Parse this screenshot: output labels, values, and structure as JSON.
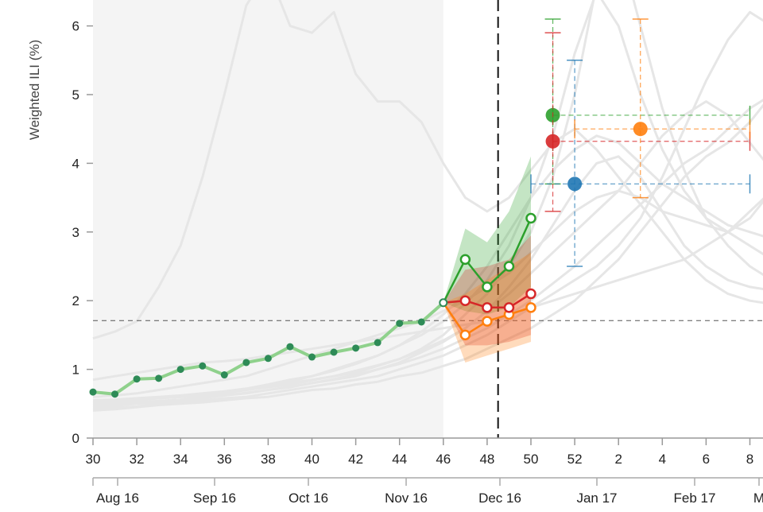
{
  "chart_data": {
    "type": "line",
    "ylabel": "Weighted ILI (%)",
    "ylim": [
      0,
      6.4
    ],
    "yticks": [
      0,
      1,
      2,
      3,
      4,
      5,
      6
    ],
    "x_ticks": [
      "30",
      "32",
      "34",
      "36",
      "38",
      "40",
      "42",
      "44",
      "46",
      "48",
      "50",
      "52",
      "2",
      "4",
      "6",
      "8"
    ],
    "date_labels": [
      "Aug 16",
      "Sep 16",
      "Oct 16",
      "Nov 16",
      "Dec 16",
      "Jan 17",
      "Feb 17",
      "M"
    ],
    "baseline": 1.71,
    "history_weeks": [
      "30",
      "46"
    ],
    "current_week": "48.5",
    "observed": {
      "weeks": [
        "30",
        "31",
        "32",
        "33",
        "34",
        "35",
        "36",
        "37",
        "38",
        "39",
        "40",
        "41",
        "42",
        "43",
        "44",
        "45",
        "46"
      ],
      "values": [
        0.67,
        0.64,
        0.86,
        0.87,
        1.0,
        1.05,
        0.92,
        1.1,
        1.16,
        1.33,
        1.18,
        1.25,
        1.31,
        1.39,
        1.67,
        1.69,
        1.97
      ]
    },
    "forecasts": [
      {
        "color": "#2ca02c",
        "weeks": [
          "46",
          "47",
          "48",
          "49",
          "50"
        ],
        "values": [
          1.97,
          2.6,
          2.2,
          2.5,
          3.2
        ],
        "lower": [
          1.97,
          1.85,
          1.8,
          1.9,
          2.2
        ],
        "upper": [
          1.97,
          3.05,
          2.85,
          3.3,
          4.1
        ]
      },
      {
        "color": "#d62728",
        "weeks": [
          "46",
          "47",
          "48",
          "49",
          "50"
        ],
        "values": [
          1.97,
          2.0,
          1.9,
          1.9,
          2.1
        ],
        "lower": [
          1.97,
          1.35,
          1.35,
          1.4,
          1.5
        ],
        "upper": [
          1.97,
          2.45,
          2.5,
          2.6,
          2.95
        ]
      },
      {
        "color": "#ff7f0e",
        "weeks": [
          "46",
          "47",
          "48",
          "49",
          "50"
        ],
        "values": [
          1.97,
          1.5,
          1.7,
          1.8,
          1.9
        ],
        "lower": [
          1.97,
          1.1,
          1.2,
          1.3,
          1.4
        ],
        "upper": [
          1.97,
          2.1,
          2.3,
          2.5,
          2.7
        ]
      }
    ],
    "peak_estimates": [
      {
        "color": "#2ca02c",
        "peak_week": "51",
        "peak_value": 4.7,
        "peak_low": 3.7,
        "peak_high": 6.1,
        "week_low": "51",
        "week_high": "8"
      },
      {
        "color": "#d62728",
        "peak_week": "51",
        "peak_value": 4.32,
        "peak_low": 3.3,
        "peak_high": 5.9,
        "week_low": "51",
        "week_high": "8"
      },
      {
        "color": "#1f77b4",
        "peak_week": "52",
        "peak_value": 3.7,
        "peak_low": 2.5,
        "peak_high": 5.5,
        "week_low": "50",
        "week_high": "8"
      },
      {
        "color": "#ff7f0e",
        "peak_week": "3",
        "peak_value": 4.5,
        "peak_low": 3.5,
        "peak_high": 6.1,
        "week_low": "52",
        "week_high": "8"
      }
    ],
    "past_seasons": [
      [
        0.45,
        0.47,
        0.5,
        0.52,
        0.55,
        0.58,
        0.62,
        0.66,
        0.7,
        0.75,
        0.8,
        0.85,
        0.9,
        1.0,
        1.1,
        1.25,
        1.4,
        1.6,
        1.85,
        2.2,
        2.6,
        3.1,
        3.6,
        4.0,
        4.1,
        3.8,
        3.3,
        2.8,
        2.5,
        2.3,
        2.2,
        2.15,
        2.1,
        2.05,
        2.0,
        1.98,
        1.95,
        1.92,
        1.9,
        1.9,
        1.9,
        1.9,
        1.9
      ],
      [
        0.5,
        0.5,
        0.55,
        0.58,
        0.6,
        0.62,
        0.65,
        0.7,
        0.75,
        0.8,
        0.85,
        0.9,
        0.95,
        1.05,
        1.15,
        1.3,
        1.5,
        1.8,
        2.1,
        2.5,
        3.0,
        3.8,
        5.0,
        6.6,
        7.2,
        6.0,
        4.8,
        3.9,
        3.2,
        2.8,
        2.5,
        2.3,
        2.2,
        2.1,
        2.0,
        1.95,
        1.9,
        1.9,
        1.9,
        1.9,
        1.9,
        1.9,
        1.9
      ],
      [
        0.42,
        0.44,
        0.46,
        0.5,
        0.52,
        0.55,
        0.58,
        0.6,
        0.65,
        0.7,
        0.75,
        0.8,
        0.85,
        0.9,
        1.0,
        1.1,
        1.2,
        1.35,
        1.5,
        1.7,
        1.9,
        2.1,
        2.3,
        2.5,
        2.8,
        3.2,
        3.8,
        4.5,
        5.2,
        5.8,
        6.2,
        6.0,
        5.3,
        4.5,
        3.8,
        3.2,
        2.8,
        2.5,
        2.3,
        2.2,
        2.1,
        2.05,
        2.0
      ],
      [
        0.55,
        0.56,
        0.58,
        0.6,
        0.62,
        0.65,
        0.68,
        0.72,
        0.78,
        0.85,
        0.9,
        1.0,
        1.1,
        1.2,
        1.35,
        1.5,
        1.7,
        1.95,
        2.3,
        2.8,
        3.5,
        4.4,
        5.6,
        6.5,
        6.0,
        5.0,
        4.2,
        3.6,
        3.2,
        3.0,
        2.8,
        2.6,
        2.5,
        2.4,
        2.3,
        2.2,
        2.1,
        2.1,
        2.0,
        2.0,
        2.0,
        2.0,
        2.0
      ],
      [
        0.4,
        0.42,
        0.45,
        0.48,
        0.5,
        0.52,
        0.55,
        0.58,
        0.6,
        0.65,
        0.7,
        0.72,
        0.78,
        0.82,
        0.9,
        0.95,
        1.05,
        1.15,
        1.3,
        1.45,
        1.6,
        1.8,
        2.0,
        2.3,
        2.6,
        3.0,
        3.4,
        3.8,
        4.1,
        4.3,
        4.6,
        5.0,
        5.5,
        5.8,
        5.6,
        5.0,
        4.3,
        3.7,
        3.2,
        2.8,
        2.5,
        2.3,
        2.1
      ],
      [
        0.5,
        0.52,
        0.55,
        0.58,
        0.6,
        0.62,
        0.66,
        0.7,
        0.75,
        0.82,
        0.9,
        0.98,
        1.08,
        1.2,
        1.35,
        1.55,
        1.8,
        2.1,
        2.5,
        3.0,
        3.5,
        3.9,
        4.2,
        4.4,
        4.3,
        4.0,
        3.7,
        3.5,
        3.3,
        3.1,
        3.0,
        2.9,
        2.8,
        2.7,
        2.6,
        2.5,
        2.4,
        2.3,
        2.2,
        2.2,
        2.1,
        2.1,
        2.1
      ],
      [
        0.48,
        0.5,
        0.52,
        0.54,
        0.56,
        0.6,
        0.62,
        0.65,
        0.7,
        0.74,
        0.8,
        0.86,
        0.92,
        1.0,
        1.08,
        1.18,
        1.3,
        1.45,
        1.6,
        1.8,
        2.0,
        2.25,
        2.5,
        2.8,
        3.1,
        3.4,
        3.7,
        4.0,
        4.2,
        4.5,
        4.8,
        5.0,
        4.9,
        4.6,
        4.2,
        3.8,
        3.4,
        3.0,
        2.7,
        2.5,
        2.3,
        2.2,
        2.1
      ],
      [
        0.6,
        0.62,
        0.65,
        0.7,
        0.75,
        0.8,
        0.85,
        0.9,
        1.0,
        1.1,
        1.2,
        1.3,
        1.4,
        1.5,
        1.6,
        1.7,
        1.85,
        2.0,
        2.2,
        2.4,
        2.7,
        3.0,
        3.3,
        3.5,
        3.6,
        3.5,
        3.3,
        3.2,
        3.1,
        3.0,
        3.2,
        3.6,
        3.9,
        3.8,
        3.4,
        3.0,
        2.7,
        2.5,
        2.3,
        2.2,
        2.1,
        2.0,
        2.0
      ],
      [
        0.52,
        0.54,
        0.56,
        0.58,
        0.6,
        0.63,
        0.67,
        0.7,
        0.74,
        0.78,
        0.84,
        0.9,
        0.98,
        1.06,
        1.15,
        1.28,
        1.42,
        1.6,
        1.85,
        2.1,
        2.4,
        2.7,
        3.0,
        3.3,
        3.6,
        4.0,
        4.4,
        4.7,
        4.9,
        4.7,
        4.3,
        3.9,
        3.5,
        3.2,
        3.0,
        2.8,
        2.6,
        2.4,
        2.3,
        2.2,
        2.1,
        2.0,
        2.0
      ],
      [
        1.45,
        1.55,
        1.7,
        2.2,
        2.8,
        3.8,
        5.0,
        6.3,
        6.8,
        6.0,
        5.9,
        6.2,
        5.3,
        4.9,
        4.9,
        4.6,
        4.0,
        3.5,
        3.3,
        3.5,
        3.9,
        4.3,
        4.5,
        4.2,
        3.8,
        3.4,
        3.0,
        2.6,
        2.3,
        2.1,
        2.0,
        1.95,
        1.9,
        1.85,
        1.8,
        1.8,
        1.8,
        1.75,
        1.75,
        1.7,
        1.7,
        1.7,
        1.7
      ],
      [
        0.85,
        0.9,
        0.95,
        1.0,
        1.05,
        1.1,
        1.12,
        1.15,
        1.2,
        1.25,
        1.3,
        1.35,
        1.4,
        1.45,
        1.5,
        1.55,
        1.6,
        1.65,
        1.7,
        1.8,
        1.9,
        2.0,
        2.1,
        2.2,
        2.3,
        2.4,
        2.5,
        2.6,
        2.8,
        3.0,
        3.3,
        3.6,
        3.8,
        3.7,
        3.5,
        3.2,
        3.0,
        2.8,
        2.6,
        2.5,
        2.4,
        2.3,
        2.2
      ]
    ]
  }
}
